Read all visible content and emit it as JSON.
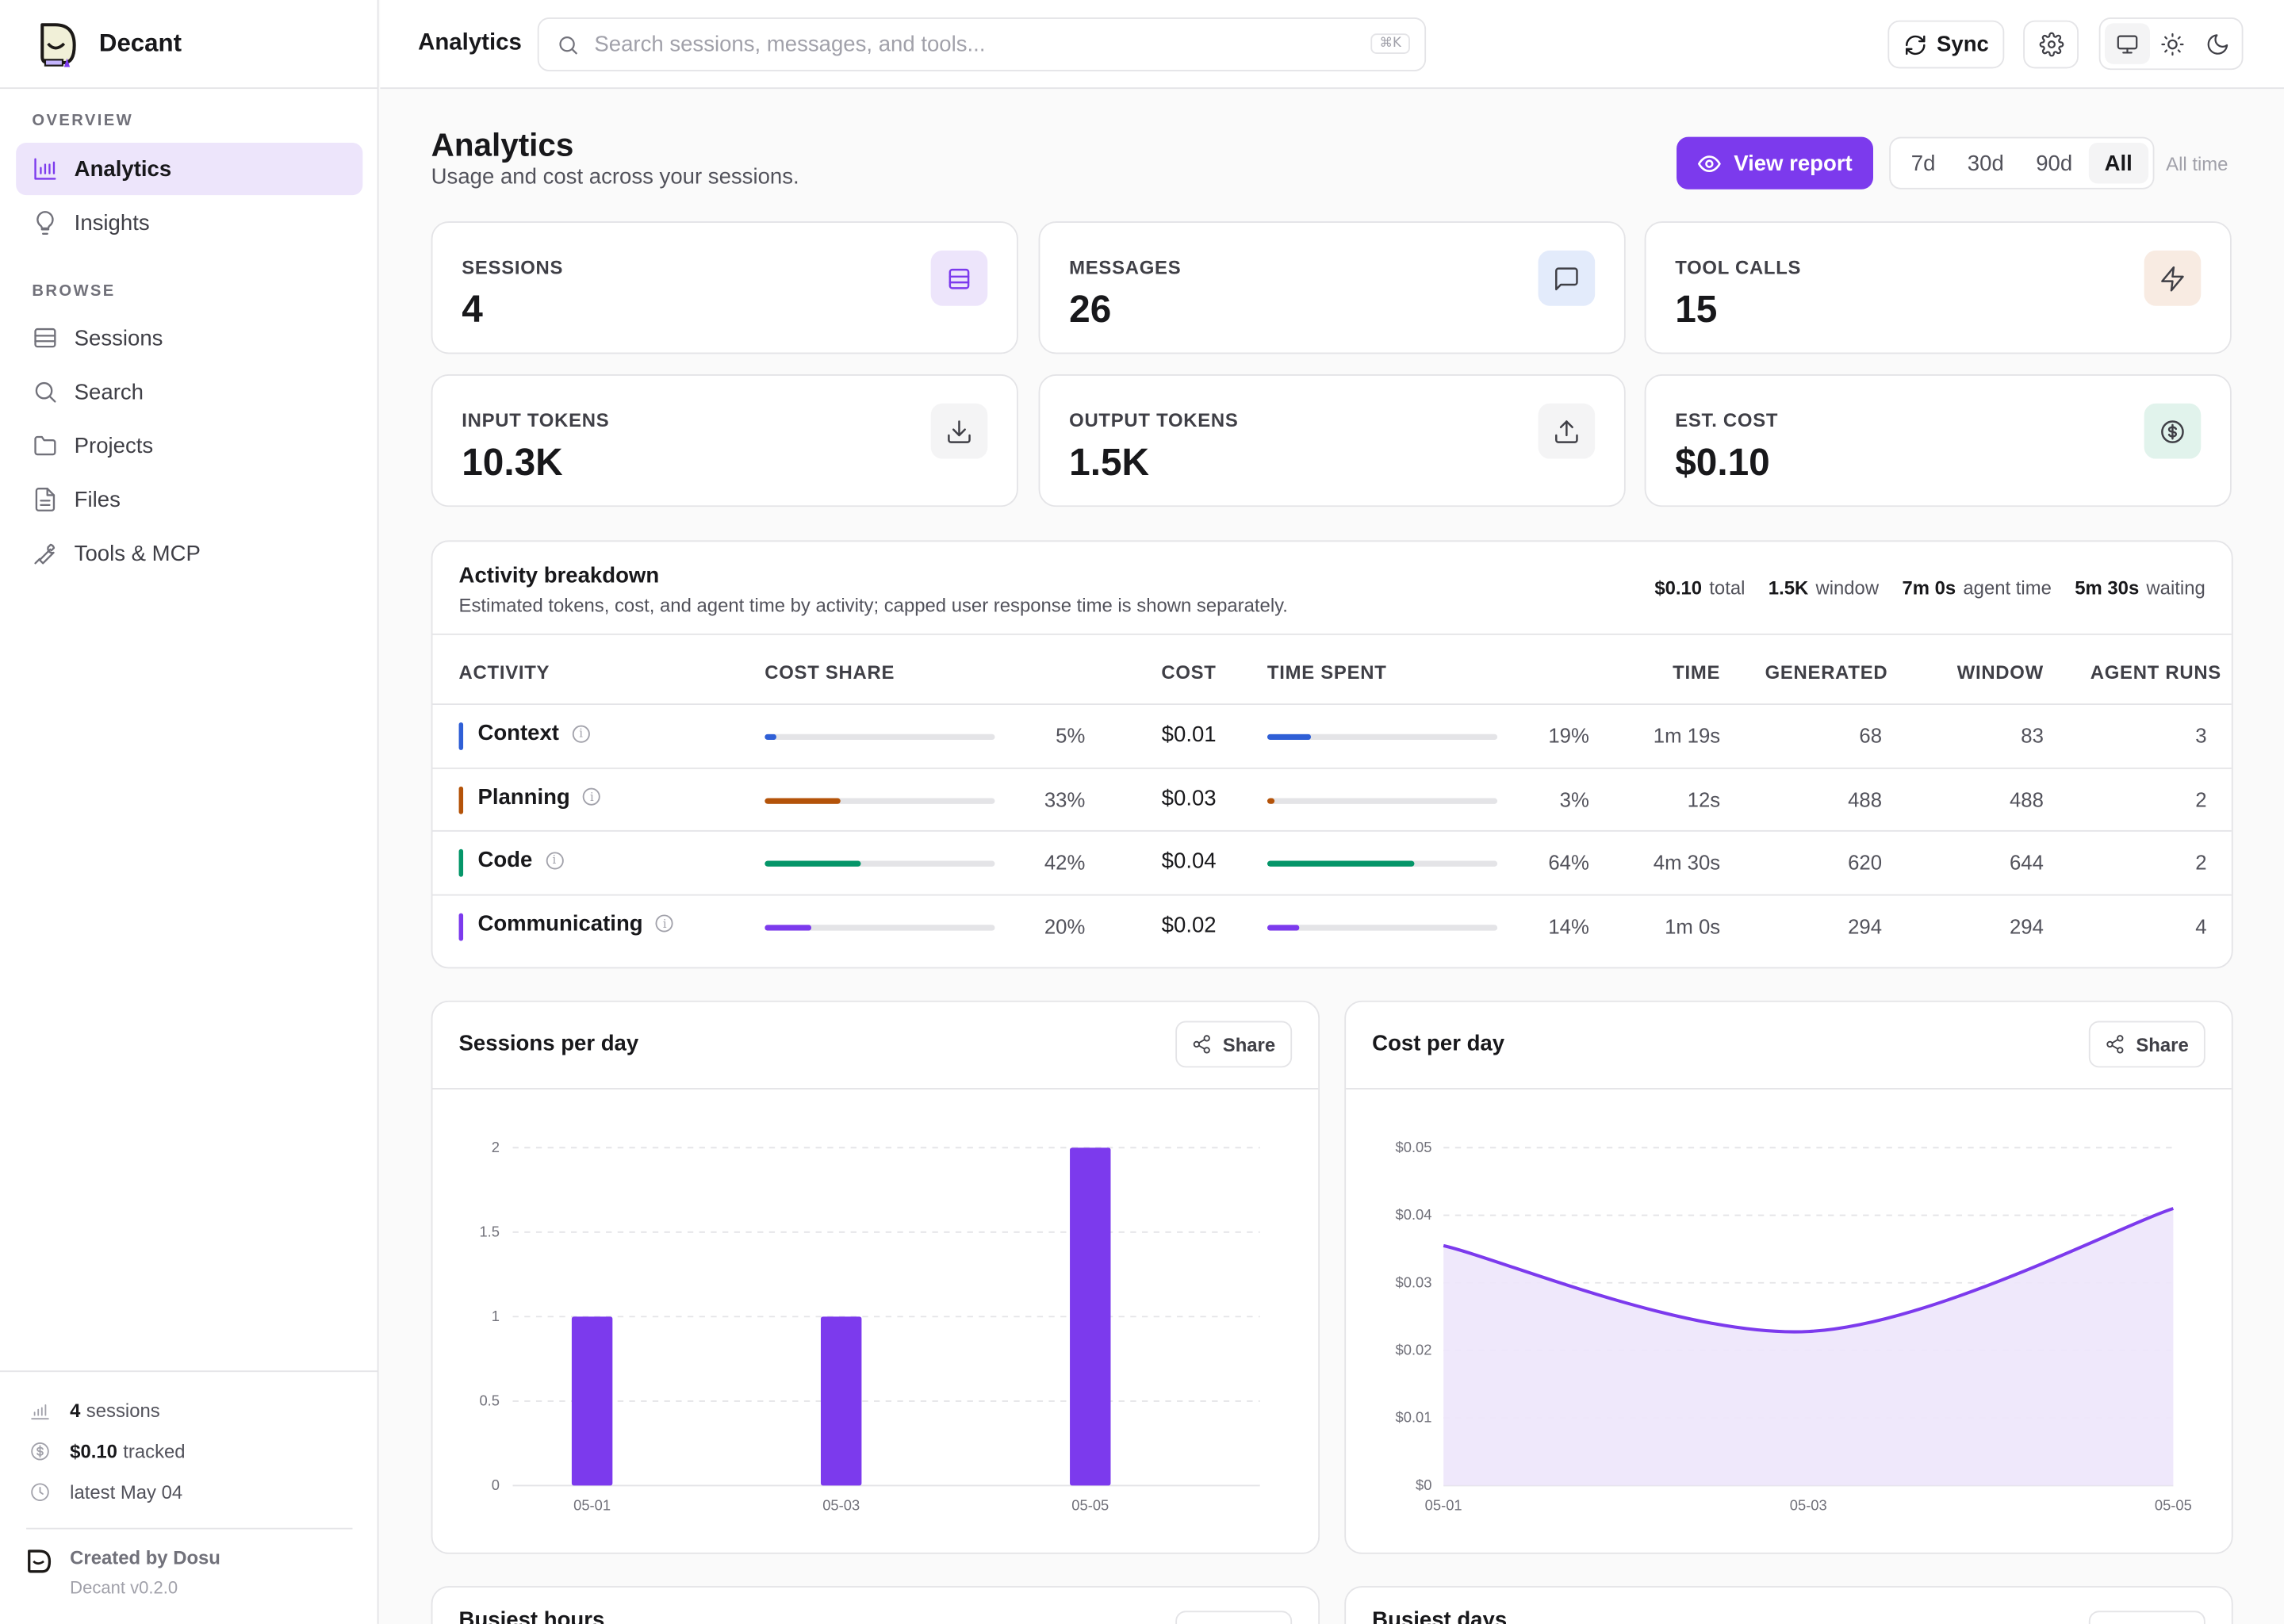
{
  "app": {
    "name": "Decant",
    "nav": {
      "overview_label": "OVERVIEW",
      "browse_label": "BROWSE",
      "items": [
        {
          "label": "Analytics",
          "icon": "bar-chart-icon",
          "active": true
        },
        {
          "label": "Insights",
          "icon": "lightbulb-icon"
        },
        {
          "label": "Sessions",
          "icon": "list-icon"
        },
        {
          "label": "Search",
          "icon": "search-icon"
        },
        {
          "label": "Projects",
          "icon": "folder-icon"
        },
        {
          "label": "Files",
          "icon": "file-icon"
        },
        {
          "label": "Tools & MCP",
          "icon": "wrench-icon"
        }
      ]
    },
    "footer": {
      "sessions_value": "4",
      "sessions_label": "sessions",
      "tracked_value": "$0.10",
      "tracked_label": "tracked",
      "latest": "latest May 04",
      "created_by": "Created by Dosu",
      "version": "Decant v0.2.0"
    }
  },
  "topbar": {
    "title": "Analytics",
    "search_placeholder": "Search sessions, messages, and tools...",
    "shortcut": "⌘K",
    "sync_label": "Sync"
  },
  "page": {
    "title": "Analytics",
    "subtitle": "Usage and cost across your sessions.",
    "view_report_label": "View report",
    "ranges": [
      "7d",
      "30d",
      "90d",
      "All"
    ],
    "active_range": "All",
    "range_caption": "All time"
  },
  "stats": [
    {
      "label": "SESSIONS",
      "value": "4",
      "icon": "table-icon",
      "icon_bg": "#ede5fb",
      "icon_color": "#7c3aed"
    },
    {
      "label": "MESSAGES",
      "value": "26",
      "icon": "message-icon",
      "icon_bg": "#e3ebfb",
      "icon_color": "#3f3f46"
    },
    {
      "label": "TOOL CALLS",
      "value": "15",
      "icon": "bolt-icon",
      "icon_bg": "#f8ebe2",
      "icon_color": "#3f3f46"
    },
    {
      "label": "INPUT TOKENS",
      "value": "10.3K",
      "icon": "download-icon",
      "icon_bg": "#f4f4f5",
      "icon_color": "#3f3f46"
    },
    {
      "label": "OUTPUT TOKENS",
      "value": "1.5K",
      "icon": "upload-icon",
      "icon_bg": "#f4f4f5",
      "icon_color": "#3f3f46"
    },
    {
      "label": "EST. COST",
      "value": "$0.10",
      "icon": "dollar-icon",
      "icon_bg": "#e1f3ec",
      "icon_color": "#3f3f46"
    }
  ],
  "activity": {
    "title": "Activity breakdown",
    "subtitle": "Estimated tokens, cost, and agent time by activity; capped user response time is shown separately.",
    "summary": [
      {
        "value": "$0.10",
        "label": "total"
      },
      {
        "value": "1.5K",
        "label": "window"
      },
      {
        "value": "7m 0s",
        "label": "agent time"
      },
      {
        "value": "5m 30s",
        "label": "waiting"
      }
    ],
    "headers": {
      "activity": "ACTIVITY",
      "cost_share": "COST SHARE",
      "cost": "COST",
      "time_spent": "TIME SPENT",
      "time": "TIME",
      "generated": "GENERATED",
      "window": "WINDOW",
      "agent_runs": "AGENT RUNS"
    },
    "rows": [
      {
        "name": "Context",
        "color": "#2f5fd6",
        "cost_share": 5,
        "cost_share_label": "5%",
        "cost": "$0.01",
        "time_share": 19,
        "time_share_label": "19%",
        "time": "1m 19s",
        "generated": "68",
        "window": "83",
        "agent_runs": "3"
      },
      {
        "name": "Planning",
        "color": "#b45309",
        "cost_share": 33,
        "cost_share_label": "33%",
        "cost": "$0.03",
        "time_share": 3,
        "time_share_label": "3%",
        "time": "12s",
        "generated": "488",
        "window": "488",
        "agent_runs": "2"
      },
      {
        "name": "Code",
        "color": "#059669",
        "cost_share": 42,
        "cost_share_label": "42%",
        "cost": "$0.04",
        "time_share": 64,
        "time_share_label": "64%",
        "time": "4m 30s",
        "generated": "620",
        "window": "644",
        "agent_runs": "2"
      },
      {
        "name": "Communicating",
        "color": "#7c3aed",
        "cost_share": 20,
        "cost_share_label": "20%",
        "cost": "$0.02",
        "time_share": 14,
        "time_share_label": "14%",
        "time": "1m 0s",
        "generated": "294",
        "window": "294",
        "agent_runs": "4"
      }
    ]
  },
  "share_label": "Share",
  "next_cards": {
    "busiest_hours": "Busiest hours",
    "busiest_days": "Busiest days"
  },
  "chart_data": [
    {
      "type": "bar",
      "title": "Sessions per day",
      "categories": [
        "05-01",
        "05-03",
        "05-05"
      ],
      "values": [
        1,
        1,
        2
      ],
      "yticks": [
        "0",
        "0.5",
        "1",
        "1.5",
        "2"
      ],
      "ylim": [
        0,
        2
      ],
      "grid": true,
      "color": "#7c3aed"
    },
    {
      "type": "area",
      "title": "Cost per day",
      "x": [
        "05-01",
        "05-03",
        "05-05"
      ],
      "values": [
        0.0355,
        0.0228,
        0.041
      ],
      "yticks": [
        "$0",
        "$0.01",
        "$0.02",
        "$0.03",
        "$0.04",
        "$0.05"
      ],
      "ylim": [
        0,
        0.05
      ],
      "grid": true,
      "color": "#7c3aed"
    }
  ]
}
